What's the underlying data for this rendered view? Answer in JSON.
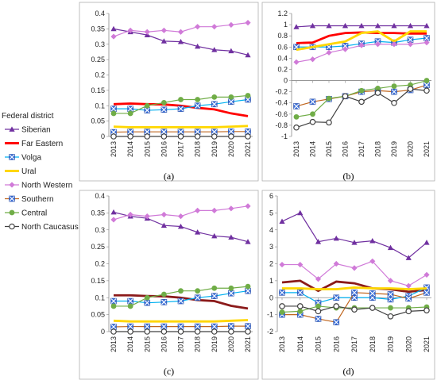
{
  "legend": {
    "title": "Federal district",
    "entries": [
      {
        "name": "Siberian",
        "color": "#7030a0",
        "marker": "triangle"
      },
      {
        "name": "Far Eastern",
        "color": "#ff0000",
        "marker": "none"
      },
      {
        "name": "Volga",
        "color": "#00b0f0",
        "marker": "x"
      },
      {
        "name": "Ural",
        "color": "#ffd700",
        "marker": "none"
      },
      {
        "name": "North Western",
        "color": "#d07ad8",
        "marker": "diamond"
      },
      {
        "name": "Southern",
        "color": "#c0661e",
        "marker": "x"
      },
      {
        "name": "Central",
        "color": "#70ad47",
        "marker": "circle"
      },
      {
        "name": "North Caucasus",
        "color": "#404040",
        "marker": "open-circle"
      }
    ]
  },
  "chart_data": [
    {
      "type": "line",
      "label": "(a)",
      "x": [
        "2013",
        "2014",
        "2015",
        "2016",
        "2017",
        "2018",
        "2019",
        "2020",
        "2021"
      ],
      "ylim": [
        0,
        0.4
      ],
      "yticks": [
        "0",
        "0.05",
        "0.1",
        "0.15",
        "0.2",
        "0.25",
        "0.3",
        "0.35",
        "0.4"
      ],
      "grid": false,
      "series": [
        {
          "name": "Siberian",
          "color": "#7030a0",
          "marker": "triangle",
          "values": [
            0.35,
            0.34,
            0.33,
            0.31,
            0.308,
            0.293,
            0.282,
            0.278,
            0.265
          ]
        },
        {
          "name": "Far Eastern",
          "color": "#ff0000",
          "marker": "none",
          "values": [
            0.105,
            0.107,
            0.105,
            0.104,
            0.1,
            0.093,
            0.088,
            0.075,
            0.066
          ]
        },
        {
          "name": "Volga",
          "color": "#00b0f0",
          "marker": "x",
          "values": [
            0.09,
            0.09,
            0.085,
            0.087,
            0.09,
            0.1,
            0.105,
            0.113,
            0.12
          ]
        },
        {
          "name": "Ural",
          "color": "#ffd700",
          "marker": "none",
          "values": [
            0.032,
            0.03,
            0.03,
            0.03,
            0.03,
            0.03,
            0.03,
            0.032,
            0.034
          ]
        },
        {
          "name": "North Western",
          "color": "#d07ad8",
          "marker": "diamond",
          "values": [
            0.325,
            0.345,
            0.34,
            0.345,
            0.34,
            0.357,
            0.357,
            0.363,
            0.37
          ]
        },
        {
          "name": "Southern",
          "color": "#c0661e",
          "marker": "x",
          "values": [
            0.014,
            0.015,
            0.015,
            0.015,
            0.015,
            0.015,
            0.015,
            0.016,
            0.016
          ]
        },
        {
          "name": "Central",
          "color": "#70ad47",
          "marker": "circle",
          "values": [
            0.075,
            0.075,
            0.1,
            0.11,
            0.12,
            0.12,
            0.128,
            0.128,
            0.133
          ]
        },
        {
          "name": "North Caucasus",
          "color": "#404040",
          "marker": "open-circle",
          "values": [
            0,
            0,
            0,
            0,
            0,
            0,
            0,
            0,
            0
          ]
        }
      ]
    },
    {
      "type": "line",
      "label": "(b)",
      "x": [
        "2013",
        "2014",
        "2015",
        "2016",
        "2017",
        "2018",
        "2019",
        "2020",
        "2021"
      ],
      "ylim": [
        -1,
        1.2
      ],
      "yticks": [
        "-1",
        "-0.8",
        "-0.6",
        "-0.4",
        "-0.2",
        "0",
        "0.2",
        "0.4",
        "0.6",
        "0.8",
        "1",
        "1.2"
      ],
      "grid": false,
      "series": [
        {
          "name": "Siberian",
          "color": "#7030a0",
          "marker": "triangle",
          "values": [
            0.96,
            0.98,
            0.98,
            0.98,
            0.98,
            0.98,
            0.98,
            0.98,
            0.98
          ]
        },
        {
          "name": "Far Eastern",
          "color": "#ff0000",
          "marker": "none",
          "values": [
            0.67,
            0.68,
            0.8,
            0.85,
            0.86,
            0.85,
            0.85,
            0.84,
            0.84
          ]
        },
        {
          "name": "Volga",
          "color": "#00b0f0",
          "marker": "x",
          "values": [
            0.6,
            0.6,
            0.6,
            0.62,
            0.66,
            0.7,
            0.68,
            0.73,
            0.76
          ]
        },
        {
          "name": "Ural",
          "color": "#ffd700",
          "marker": "none",
          "values": [
            0.55,
            0.6,
            0.65,
            0.7,
            0.85,
            0.88,
            0.7,
            0.88,
            0.88
          ]
        },
        {
          "name": "North Western",
          "color": "#d07ad8",
          "marker": "diamond",
          "values": [
            0.33,
            0.38,
            0.5,
            0.56,
            0.63,
            0.65,
            0.65,
            0.65,
            0.68
          ]
        },
        {
          "name": "Southern",
          "color": "#c0661e",
          "marker": "x",
          "values": [
            -0.46,
            -0.38,
            -0.33,
            -0.28,
            -0.2,
            -0.18,
            -0.2,
            -0.17,
            -0.08
          ]
        },
        {
          "name": "Central",
          "color": "#70ad47",
          "marker": "circle",
          "values": [
            -0.65,
            -0.6,
            -0.32,
            -0.28,
            -0.18,
            -0.14,
            -0.1,
            -0.08,
            0
          ]
        },
        {
          "name": "North Caucasus",
          "color": "#404040",
          "marker": "open-circle",
          "values": [
            -0.84,
            -0.74,
            -0.75,
            -0.28,
            -0.38,
            -0.22,
            -0.4,
            -0.15,
            -0.18
          ]
        }
      ]
    },
    {
      "type": "line",
      "label": "(c)",
      "x": [
        "2013",
        "2014",
        "2015",
        "2016",
        "2017",
        "2018",
        "2019",
        "2020",
        "2021"
      ],
      "ylim": [
        0,
        0.4
      ],
      "yticks": [
        "0",
        "0.05",
        "0.1",
        "0.15",
        "0.2",
        "0.25",
        "0.3",
        "0.35",
        "0.4"
      ],
      "grid": false,
      "series": [
        {
          "name": "Siberian",
          "color": "#7030a0",
          "marker": "triangle",
          "values": [
            0.352,
            0.34,
            0.334,
            0.313,
            0.31,
            0.293,
            0.282,
            0.278,
            0.265
          ]
        },
        {
          "name": "Far Eastern",
          "color": "#8b1a1a",
          "marker": "none",
          "values": [
            0.107,
            0.107,
            0.105,
            0.104,
            0.1,
            0.093,
            0.09,
            0.076,
            0.068
          ]
        },
        {
          "name": "Volga",
          "color": "#00b0f0",
          "marker": "x",
          "values": [
            0.09,
            0.09,
            0.085,
            0.087,
            0.09,
            0.1,
            0.105,
            0.113,
            0.12
          ]
        },
        {
          "name": "Ural",
          "color": "#ffd700",
          "marker": "none",
          "values": [
            0.032,
            0.03,
            0.03,
            0.03,
            0.03,
            0.03,
            0.03,
            0.032,
            0.034
          ]
        },
        {
          "name": "North Western",
          "color": "#d07ad8",
          "marker": "diamond",
          "values": [
            0.33,
            0.345,
            0.34,
            0.345,
            0.34,
            0.357,
            0.357,
            0.363,
            0.37
          ]
        },
        {
          "name": "Southern",
          "color": "#c0661e",
          "marker": "x",
          "values": [
            0.014,
            0.015,
            0.015,
            0.015,
            0.015,
            0.015,
            0.015,
            0.016,
            0.016
          ]
        },
        {
          "name": "Central",
          "color": "#70ad47",
          "marker": "circle",
          "values": [
            0.075,
            0.075,
            0.1,
            0.11,
            0.12,
            0.12,
            0.128,
            0.128,
            0.133
          ]
        },
        {
          "name": "North Caucasus",
          "color": "#404040",
          "marker": "open-circle",
          "values": [
            0,
            0,
            0,
            0,
            0,
            0,
            0,
            0,
            0
          ]
        }
      ]
    },
    {
      "type": "line",
      "label": "(d)",
      "x": [
        "2013",
        "2014",
        "2015",
        "2016",
        "2017",
        "2018",
        "2019",
        "2020",
        "2021"
      ],
      "ylim": [
        -2,
        6
      ],
      "yticks": [
        "-2",
        "-1",
        "0",
        "1",
        "2",
        "3",
        "4",
        "5",
        "6"
      ],
      "grid": false,
      "series": [
        {
          "name": "Siberian",
          "color": "#7030a0",
          "marker": "triangle",
          "values": [
            4.5,
            5.0,
            3.3,
            3.5,
            3.25,
            3.35,
            2.95,
            2.35,
            3.25
          ]
        },
        {
          "name": "Far Eastern",
          "color": "#8b1a1a",
          "marker": "none",
          "values": [
            0.9,
            1.0,
            0.4,
            0.95,
            0.85,
            0.55,
            0.5,
            0.35,
            0.45
          ]
        },
        {
          "name": "Volga",
          "color": "#00b0f0",
          "marker": "x",
          "values": [
            0.3,
            0.3,
            -0.3,
            0,
            0,
            0,
            -0.1,
            0.1,
            0.6
          ]
        },
        {
          "name": "Ural",
          "color": "#ffd700",
          "marker": "none",
          "values": [
            0.55,
            0.55,
            0.5,
            0.5,
            0.6,
            0.55,
            0.55,
            0.5,
            0.55
          ]
        },
        {
          "name": "North Western",
          "color": "#d07ad8",
          "marker": "diamond",
          "values": [
            1.95,
            1.95,
            1.1,
            2.0,
            1.75,
            2.15,
            1.0,
            0.7,
            1.35
          ]
        },
        {
          "name": "Southern",
          "color": "#c0661e",
          "marker": "x",
          "values": [
            -1.0,
            -1.0,
            -1.25,
            -1.45,
            0.3,
            0.25,
            0.2,
            -0.05,
            0.3
          ]
        },
        {
          "name": "Central",
          "color": "#70ad47",
          "marker": "circle",
          "values": [
            -0.85,
            -0.8,
            -0.5,
            -0.6,
            -0.6,
            -0.6,
            -0.6,
            -0.6,
            -0.55
          ]
        },
        {
          "name": "North Caucasus",
          "color": "#404040",
          "marker": "open-circle",
          "values": [
            -0.5,
            -0.5,
            -0.8,
            -0.5,
            -0.7,
            -0.6,
            -1.1,
            -0.8,
            -0.75
          ]
        }
      ]
    }
  ]
}
